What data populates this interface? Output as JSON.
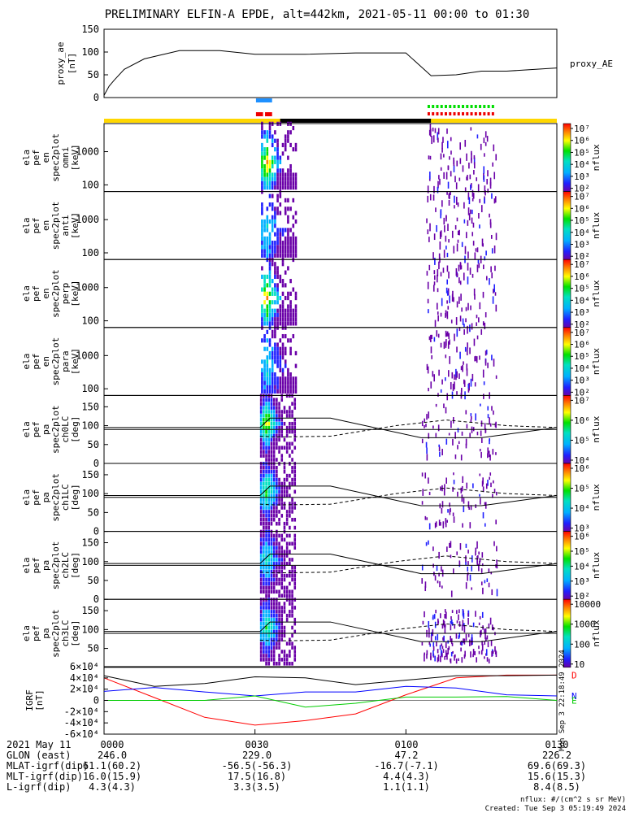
{
  "title": "PRELIMINARY ELFIN-A EPDE, alt=442km, 2021-05-11 00:00 to 01:30",
  "chart_data": [
    {
      "type": "line",
      "panel": "proxy_ae",
      "ylabel": [
        "proxy_ae",
        "[nT]"
      ],
      "right_label": "proxy_AE",
      "ylim": [
        0,
        150
      ],
      "yticks": [
        "0",
        "50",
        "100",
        "150"
      ],
      "x_minutes": [
        0,
        1,
        2,
        4,
        8,
        15,
        23,
        30,
        40,
        50,
        60,
        65,
        70,
        75,
        80,
        90
      ],
      "values": [
        5,
        25,
        38,
        62,
        85,
        103,
        103,
        95,
        95,
        98,
        98,
        48,
        50,
        58,
        58,
        65
      ]
    },
    {
      "type": "heatmap",
      "panel": "ela_pef_en_spec2plot_omni",
      "ylabel": [
        "ela",
        "pef",
        "en",
        "spec2plot",
        "omni",
        "[keV]"
      ],
      "ylim": [
        63,
        7000
      ],
      "yscale": "log",
      "yticks": [
        "100",
        "1000"
      ],
      "colorbar": {
        "label": "nflux",
        "ticks": [
          "10²",
          "10³",
          "10⁴",
          "10⁵",
          "10⁶",
          "10⁷"
        ]
      }
    },
    {
      "type": "heatmap",
      "panel": "ela_pef_en_spec2plot_anti",
      "ylabel": [
        "ela",
        "pef",
        "en",
        "spec2plot",
        "anti",
        "[keV]"
      ],
      "ylim": [
        63,
        7000
      ],
      "yscale": "log",
      "yticks": [
        "100",
        "1000"
      ],
      "colorbar": {
        "label": "nflux",
        "ticks": [
          "10²",
          "10³",
          "10⁴",
          "10⁵",
          "10⁶",
          "10⁷"
        ]
      }
    },
    {
      "type": "heatmap",
      "panel": "ela_pef_en_spec2plot_perp",
      "ylabel": [
        "ela",
        "pef",
        "en",
        "spec2plot",
        "perp",
        "[keV]"
      ],
      "ylim": [
        63,
        7000
      ],
      "yscale": "log",
      "yticks": [
        "100",
        "1000"
      ],
      "colorbar": {
        "label": "nflux",
        "ticks": [
          "10²",
          "10³",
          "10⁴",
          "10⁵",
          "10⁶",
          "10⁷"
        ]
      }
    },
    {
      "type": "heatmap",
      "panel": "ela_pef_en_spec2plot_para",
      "ylabel": [
        "ela",
        "pef",
        "en",
        "spec2plot",
        "para",
        "[keV]"
      ],
      "ylim": [
        63,
        7000
      ],
      "yscale": "log",
      "yticks": [
        "100",
        "1000"
      ],
      "colorbar": {
        "label": "nflux",
        "ticks": [
          "10²",
          "10³",
          "10⁴",
          "10⁵",
          "10⁶",
          "10⁷"
        ]
      }
    },
    {
      "type": "heatmap",
      "panel": "ela_pef_pa_spec2plot_ch0LC",
      "ylabel": [
        "ela",
        "pef",
        "pa",
        "spec2plot",
        "ch0LC",
        "[deg]"
      ],
      "ylim": [
        0,
        180
      ],
      "yticks": [
        "0",
        "50",
        "100",
        "150"
      ],
      "colorbar": {
        "label": "nflux",
        "ticks": [
          "10⁴",
          "10⁵",
          "10⁶",
          "10⁷"
        ]
      }
    },
    {
      "type": "heatmap",
      "panel": "ela_pef_pa_spec2plot_ch1LC",
      "ylabel": [
        "ela",
        "pef",
        "pa",
        "spec2plot",
        "ch1LC",
        "[deg]"
      ],
      "ylim": [
        0,
        180
      ],
      "yticks": [
        "0",
        "50",
        "100",
        "150"
      ],
      "colorbar": {
        "label": "nflux",
        "ticks": [
          "10³",
          "10⁴",
          "10⁵",
          "10⁶"
        ]
      }
    },
    {
      "type": "heatmap",
      "panel": "ela_pef_pa_spec2plot_ch2LC",
      "ylabel": [
        "ela",
        "pef",
        "pa",
        "spec2plot",
        "ch2LC",
        "[deg]"
      ],
      "ylim": [
        0,
        180
      ],
      "yticks": [
        "0",
        "50",
        "100",
        "150"
      ],
      "colorbar": {
        "label": "nflux",
        "ticks": [
          "10²",
          "10³",
          "10⁴",
          "10⁵",
          "10⁶"
        ]
      }
    },
    {
      "type": "heatmap",
      "panel": "ela_pef_pa_spec2plot_ch3LC",
      "ylabel": [
        "ela",
        "pef",
        "pa",
        "spec2plot",
        "ch3LC",
        "[deg]"
      ],
      "ylim": [
        0,
        180
      ],
      "yticks": [
        "50",
        "100",
        "150"
      ],
      "colorbar": {
        "label": "nflux",
        "ticks": [
          "10",
          "100",
          "1000",
          "10000"
        ]
      }
    },
    {
      "type": "line",
      "panel": "IGRF",
      "ylabel": [
        "IGRF",
        "[nT]"
      ],
      "ylim": [
        -60000,
        60000
      ],
      "yticks": [
        "-6×10⁴",
        "-4×10⁴",
        "-2×10⁴",
        "0",
        "2×10⁴",
        "4×10⁴",
        "6×10⁴"
      ],
      "series": [
        {
          "name": "D",
          "color": "#ff0000",
          "x_minutes": [
            0,
            10,
            20,
            30,
            40,
            50,
            60,
            70,
            80,
            90
          ],
          "values": [
            40000,
            5000,
            -30000,
            -44000,
            -36000,
            -24000,
            10000,
            40000,
            45000,
            45000
          ]
        },
        {
          "name": "N",
          "color": "#0000ff",
          "x_minutes": [
            0,
            10,
            20,
            30,
            40,
            50,
            60,
            70,
            80,
            90
          ],
          "values": [
            16000,
            23000,
            15000,
            8000,
            15000,
            15000,
            25000,
            22000,
            10000,
            8000
          ]
        },
        {
          "name": "E",
          "color": "#00cc00",
          "x_minutes": [
            0,
            10,
            20,
            30,
            40,
            50,
            60,
            70,
            80,
            90
          ],
          "values": [
            0,
            0,
            0,
            8000,
            -12000,
            -5000,
            6000,
            6000,
            7000,
            0
          ]
        },
        {
          "name": "",
          "color": "#000000",
          "x_minutes": [
            0,
            10,
            20,
            30,
            40,
            50,
            60,
            70,
            80,
            90
          ],
          "values": [
            44000,
            25000,
            30000,
            42000,
            40000,
            28000,
            36000,
            44000,
            44000,
            45000
          ]
        }
      ]
    }
  ],
  "rotated_note": "Mon Sep  3 22:18:49 2024",
  "footer": {
    "rows": [
      {
        "label": "2021 May 11",
        "values": [
          "0000",
          "0030",
          "0100",
          "0130"
        ]
      },
      {
        "label": "GLON (east)",
        "values": [
          "246.0",
          "229.0",
          "47.2",
          "226.2"
        ]
      },
      {
        "label": "MLAT-igrf(dip)",
        "values": [
          "61.1(60.2)",
          "-56.5(-56.3)",
          "-16.7(-7.1)",
          "69.6(69.3)"
        ]
      },
      {
        "label": "MLT-igrf(dip)",
        "values": [
          "16.0(15.9)",
          "17.5(16.8)",
          "4.4(4.3)",
          "15.6(15.3)"
        ]
      },
      {
        "label": "L-igrf(dip)",
        "values": [
          "4.3(4.3)",
          "3.3(3.5)",
          "1.1(1.1)",
          "8.4(8.5)"
        ]
      }
    ],
    "units": "nflux: #/(cm^2 s sr MeV)",
    "created": "Created: Tue Sep  3 05:19:49 2024"
  },
  "colors": {
    "status_yellow": "#ffd700",
    "status_black": "#000000",
    "mark_blue": "#1e90ff",
    "mark_red": "#ee0000",
    "mark_green": "#00dd00"
  }
}
